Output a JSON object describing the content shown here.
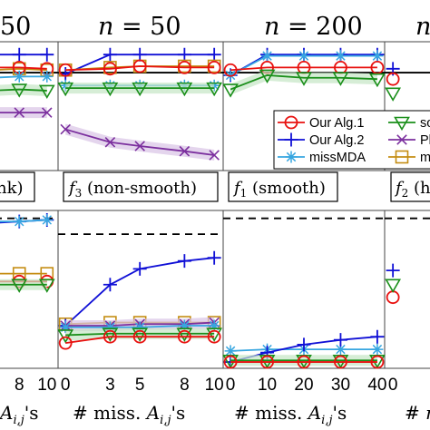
{
  "colors": {
    "alg1": "#e8110f",
    "alg2": "#1010d6",
    "missmda": "#37a6e0",
    "soft": "#1a8f1a",
    "pl": "#7b2f9e",
    "m": "#c48d12",
    "reference": "#000000",
    "band_pl": "#d9c3e6",
    "band_green": "#c4e6c4"
  },
  "legend": {
    "placement": "top-right",
    "entries": [
      {
        "key": "alg1",
        "label": "Our Alg.1",
        "marker": "circle"
      },
      {
        "key": "alg2",
        "label": "Our Alg.2",
        "marker": "plus"
      },
      {
        "key": "missmda",
        "label": "missMDA",
        "marker": "asterisk"
      },
      {
        "key": "soft",
        "label": "so",
        "marker": "triangle"
      },
      {
        "key": "pl",
        "label": "Pl",
        "marker": "x"
      },
      {
        "key": "m",
        "label": "m",
        "marker": "square"
      }
    ]
  },
  "chart_data": [
    {
      "type": "line",
      "panel": "top-1",
      "title": "50",
      "box_label": "nk)",
      "x": [
        6,
        8,
        10
      ],
      "grid": false,
      "reference_line": {
        "y": 0.76,
        "style": "solid"
      },
      "ylim": [
        0,
        1
      ],
      "series": [
        {
          "key": "alg2",
          "values": [
            0.9,
            0.9,
            0.9
          ]
        },
        {
          "key": "m",
          "values": [
            0.78,
            0.79,
            0.78
          ]
        },
        {
          "key": "alg1",
          "values": [
            0.8,
            0.8,
            0.79
          ]
        },
        {
          "key": "missmda",
          "values": [
            0.72,
            0.73,
            0.73
          ]
        },
        {
          "key": "soft",
          "values": [
            0.62,
            0.63,
            0.62
          ]
        },
        {
          "key": "pl",
          "values": [
            0.45,
            0.45,
            0.45
          ]
        }
      ]
    },
    {
      "type": "line",
      "panel": "top-2",
      "title": "n = 50",
      "box_label": "f3 (non-smooth)",
      "x": [
        0,
        3,
        5,
        8,
        10
      ],
      "grid": false,
      "reference_line": {
        "y": 0.76,
        "style": "solid"
      },
      "ylim": [
        0,
        1
      ],
      "series": [
        {
          "key": "alg2",
          "values": [
            0.75,
            0.9,
            0.9,
            0.9,
            0.9
          ]
        },
        {
          "key": "m",
          "values": [
            0.78,
            0.8,
            0.81,
            0.81,
            0.81
          ]
        },
        {
          "key": "alg1",
          "values": [
            0.78,
            0.79,
            0.81,
            0.8,
            0.8
          ]
        },
        {
          "key": "missmda",
          "values": [
            0.66,
            0.66,
            0.66,
            0.66,
            0.66
          ]
        },
        {
          "key": "soft",
          "values": [
            0.64,
            0.64,
            0.64,
            0.64,
            0.64
          ]
        },
        {
          "key": "pl",
          "values": [
            0.32,
            0.22,
            0.19,
            0.15,
            0.12
          ]
        }
      ]
    },
    {
      "type": "line",
      "panel": "top-3",
      "title": "n = 200",
      "box_label": "f1 (smooth)",
      "x": [
        0,
        10,
        20,
        30,
        40
      ],
      "grid": false,
      "reference_line": {
        "y": 0.76,
        "style": "solid"
      },
      "ylim": [
        0,
        1
      ],
      "series": [
        {
          "key": "alg2",
          "values": [
            0.74,
            0.9,
            0.9,
            0.9,
            0.9
          ]
        },
        {
          "key": "missmda",
          "values": [
            0.74,
            0.89,
            0.89,
            0.89,
            0.89
          ]
        },
        {
          "key": "alg1",
          "values": [
            0.78,
            0.8,
            0.8,
            0.8,
            0.8
          ]
        },
        {
          "key": "soft",
          "values": [
            0.63,
            0.74,
            0.72,
            0.72,
            0.71
          ]
        }
      ]
    },
    {
      "type": "line",
      "panel": "top-4",
      "title": "n",
      "box_label": "f2 (h",
      "x": [
        0
      ],
      "grid": false,
      "reference_line": {
        "y": 0.76,
        "style": "solid"
      },
      "ylim": [
        0,
        1
      ],
      "series": [
        {
          "key": "alg2",
          "values": [
            0.79
          ]
        },
        {
          "key": "alg1",
          "values": [
            0.71
          ]
        },
        {
          "key": "soft",
          "values": [
            0.6
          ]
        }
      ]
    },
    {
      "type": "line",
      "panel": "bottom-1",
      "x": [
        6,
        8,
        10
      ],
      "xtick_labels": [
        "8",
        "10"
      ],
      "xlabel": "A_{i,j}'s",
      "grid": false,
      "reference_line": {
        "y": 0.95,
        "style": "dashed"
      },
      "ylim": [
        0,
        1
      ],
      "series": [
        {
          "key": "alg2",
          "values": [
            0.92,
            0.93,
            0.94
          ]
        },
        {
          "key": "missmda",
          "values": [
            0.93,
            0.93,
            0.94
          ]
        },
        {
          "key": "m",
          "values": [
            0.6,
            0.6,
            0.6
          ]
        },
        {
          "key": "alg1",
          "values": [
            0.55,
            0.55,
            0.55
          ]
        },
        {
          "key": "soft",
          "values": [
            0.53,
            0.53,
            0.53
          ]
        }
      ]
    },
    {
      "type": "line",
      "panel": "bottom-2",
      "x": [
        0,
        3,
        5,
        8,
        10
      ],
      "xtick_labels": [
        "0",
        "3",
        "5",
        "8",
        "10"
      ],
      "xlabel": "# miss. A_{i,j}'s",
      "grid": false,
      "reference_line": {
        "y": 0.85,
        "style": "dashed"
      },
      "ylim": [
        0,
        1
      ],
      "series": [
        {
          "key": "alg2",
          "values": [
            0.27,
            0.53,
            0.63,
            0.68,
            0.7
          ]
        },
        {
          "key": "m",
          "values": [
            0.28,
            0.29,
            0.29,
            0.29,
            0.29
          ]
        },
        {
          "key": "pl",
          "values": [
            0.27,
            0.27,
            0.28,
            0.28,
            0.29
          ]
        },
        {
          "key": "missmda",
          "values": [
            0.26,
            0.26,
            0.26,
            0.27,
            0.27
          ]
        },
        {
          "key": "soft",
          "values": [
            0.21,
            0.22,
            0.22,
            0.22,
            0.22
          ]
        },
        {
          "key": "alg1",
          "values": [
            0.16,
            0.2,
            0.2,
            0.2,
            0.2
          ]
        }
      ]
    },
    {
      "type": "line",
      "panel": "bottom-3",
      "x": [
        0,
        10,
        20,
        30,
        40
      ],
      "xtick_labels": [
        "0",
        "10",
        "20",
        "30",
        "40"
      ],
      "xlabel": "# miss. A_{i,j}'s",
      "grid": false,
      "reference_line": {
        "y": 0.95,
        "style": "dashed"
      },
      "ylim": [
        0,
        1
      ],
      "series": [
        {
          "key": "missmda",
          "values": [
            0.11,
            0.12,
            0.12,
            0.12,
            0.12
          ]
        },
        {
          "key": "alg2",
          "values": [
            0.04,
            0.1,
            0.15,
            0.18,
            0.2
          ]
        },
        {
          "key": "soft",
          "values": [
            0.05,
            0.05,
            0.05,
            0.05,
            0.05
          ]
        },
        {
          "key": "alg1",
          "values": [
            0.04,
            0.04,
            0.04,
            0.04,
            0.04
          ]
        }
      ]
    },
    {
      "type": "line",
      "panel": "bottom-4",
      "x": [
        0
      ],
      "xtick_labels": [
        "0"
      ],
      "xlabel": "# n",
      "grid": false,
      "reference_line": {
        "y": 0.95,
        "style": "dashed"
      },
      "ylim": [
        0,
        1
      ],
      "series": [
        {
          "key": "alg2",
          "values": [
            0.62
          ]
        },
        {
          "key": "alg1",
          "values": [
            0.45
          ]
        },
        {
          "key": "soft",
          "values": [
            0.53
          ]
        }
      ]
    }
  ]
}
